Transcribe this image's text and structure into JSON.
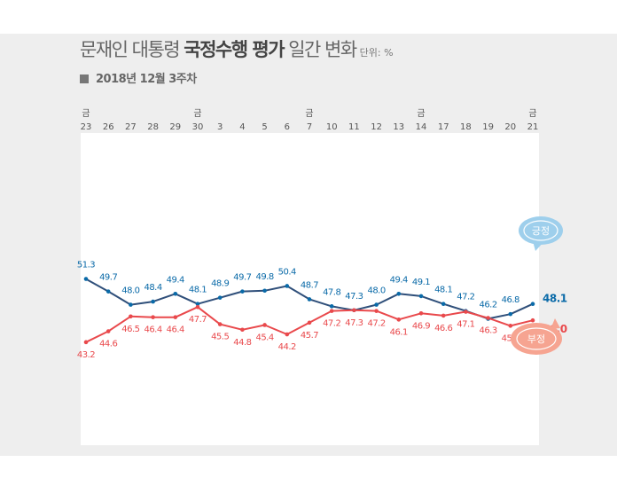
{
  "header": {
    "title_prefix": "문재인 대통령 ",
    "title_bold": "국정수행 평가",
    "title_suffix": " 일간 변화",
    "unit": "단위: %",
    "subtitle": "2018년 12월 3주차"
  },
  "chart_data": {
    "type": "line",
    "x": [
      "23",
      "26",
      "27",
      "28",
      "29",
      "30",
      "3",
      "4",
      "5",
      "6",
      "7",
      "10",
      "11",
      "12",
      "13",
      "14",
      "17",
      "18",
      "19",
      "20",
      "21"
    ],
    "friday_marks": [
      "금",
      "",
      "",
      "",
      "",
      "금",
      "",
      "",
      "",
      "",
      "금",
      "",
      "",
      "",
      "",
      "금",
      "",
      "",
      "",
      "",
      "금"
    ],
    "series": [
      {
        "name": "긍정",
        "color": "#0a6aa8",
        "values": [
          51.3,
          49.7,
          48.0,
          48.4,
          49.4,
          48.1,
          48.9,
          49.7,
          49.8,
          50.4,
          48.7,
          47.8,
          47.3,
          48.0,
          49.4,
          49.1,
          48.1,
          47.2,
          46.2,
          46.8,
          48.1
        ],
        "labels": [
          "51.3",
          "49.7",
          "48.0",
          "48.4",
          "49.4",
          "48.1",
          "48.9",
          "49.7",
          "49.8",
          "50.4",
          "48.7",
          "47.8",
          "47.3",
          "48.0",
          "49.4",
          "49.1",
          "48.1",
          "47.2",
          "46.2",
          "46.8",
          "48.1"
        ]
      },
      {
        "name": "부정",
        "color": "#e9494c",
        "values": [
          43.2,
          44.6,
          46.5,
          46.4,
          46.4,
          47.7,
          45.5,
          44.8,
          45.4,
          44.2,
          45.7,
          47.2,
          47.3,
          47.2,
          46.1,
          46.9,
          46.6,
          47.1,
          46.3,
          45.3,
          46.0
        ],
        "labels": [
          "43.2",
          "44.6",
          "46.5",
          "46.4",
          "46.4",
          "47.7",
          "45.5",
          "44.8",
          "45.4",
          "44.2",
          "45.7",
          "47.2",
          "47.3",
          "47.2",
          "46.1",
          "46.9",
          "46.6",
          "47.1",
          "46.3",
          "45.3",
          "46.0"
        ]
      }
    ],
    "ylim": [
      30,
      70
    ],
    "legend": {
      "positive": "긍정",
      "negative": "부정",
      "placement": "right"
    },
    "line_color": "#2f4f7a",
    "positive_bubble_color": "#9ecfec",
    "negative_bubble_color": "#f6a491"
  }
}
